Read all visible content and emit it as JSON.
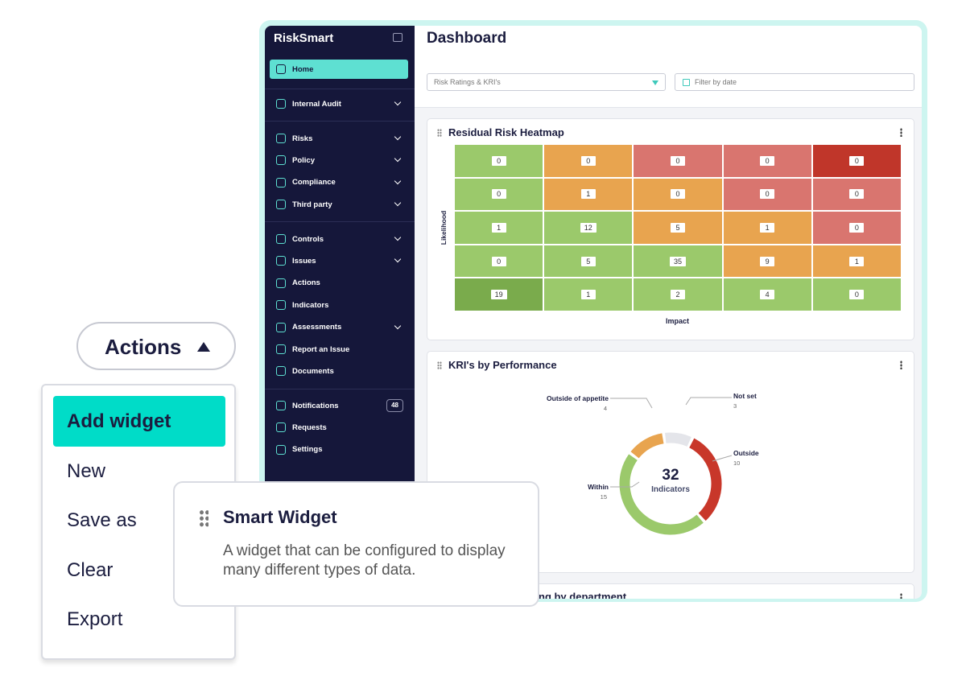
{
  "sidebar": {
    "brand": "RiskSmart",
    "groups": [
      [
        {
          "label": "Home",
          "active": true
        }
      ],
      [
        {
          "label": "Internal Audit",
          "expandable": true
        }
      ],
      [
        {
          "label": "Risks",
          "expandable": true
        },
        {
          "label": "Policy",
          "expandable": true
        },
        {
          "label": "Compliance",
          "expandable": true
        },
        {
          "label": "Third party",
          "expandable": true
        }
      ],
      [
        {
          "label": "Controls",
          "expandable": true
        },
        {
          "label": "Issues",
          "expandable": true
        },
        {
          "label": "Actions"
        },
        {
          "label": "Indicators"
        },
        {
          "label": "Assessments",
          "expandable": true
        },
        {
          "label": "Report an Issue"
        },
        {
          "label": "Documents"
        }
      ],
      [
        {
          "label": "Notifications",
          "badge": 48
        },
        {
          "label": "Requests"
        },
        {
          "label": "Settings"
        }
      ]
    ]
  },
  "header": {
    "title": "Dashboard",
    "filters": [
      "Risk Ratings & KRI's",
      "Filter by date"
    ]
  },
  "heatmap": {
    "title": "Residual Risk Heatmap",
    "y_label": "Likelihood",
    "x_label": "Impact",
    "rows": [
      [
        0,
        0,
        0,
        0,
        0
      ],
      [
        0,
        1,
        0,
        0,
        0
      ],
      [
        1,
        12,
        5,
        1,
        0
      ],
      [
        0,
        5,
        35,
        9,
        1
      ],
      [
        19,
        1,
        2,
        4,
        0
      ]
    ],
    "colors": [
      [
        "#9bc96b",
        "#e8a44f",
        "#d9756f",
        "#d9756f",
        "#c0362a"
      ],
      [
        "#9bc96b",
        "#e8a44f",
        "#e8a44f",
        "#d9756f",
        "#d9756f"
      ],
      [
        "#9bc96b",
        "#9bc96b",
        "#e8a44f",
        "#e8a44f",
        "#d9756f"
      ],
      [
        "#9bc96b",
        "#9bc96b",
        "#9bc96b",
        "#e8a44f",
        "#e8a44f"
      ],
      [
        "#7aab4c",
        "#9bc96b",
        "#9bc96b",
        "#9bc96b",
        "#9bc96b"
      ]
    ]
  },
  "kri": {
    "title": "KRI's by Performance",
    "total": 32,
    "total_label": "Indicators",
    "segments": [
      {
        "name": "Not set",
        "value": 3,
        "color": "#e4e5ea"
      },
      {
        "name": "Outside",
        "value": 10,
        "color": "#c8372a"
      },
      {
        "name": "Within",
        "value": 15,
        "color": "#9bc96b"
      },
      {
        "name": "Outside of appetite",
        "value": 4,
        "color": "#e8a44f"
      }
    ]
  },
  "next_widget": {
    "title": "ng by department"
  },
  "actions_button": {
    "label": "Actions"
  },
  "menu": {
    "items": [
      "Add widget",
      "New",
      "Save as",
      "Clear",
      "Export"
    ],
    "active": 0
  },
  "tooltip": {
    "title": "Smart Widget",
    "description": "A widget that can be configured to display many different types of data."
  }
}
